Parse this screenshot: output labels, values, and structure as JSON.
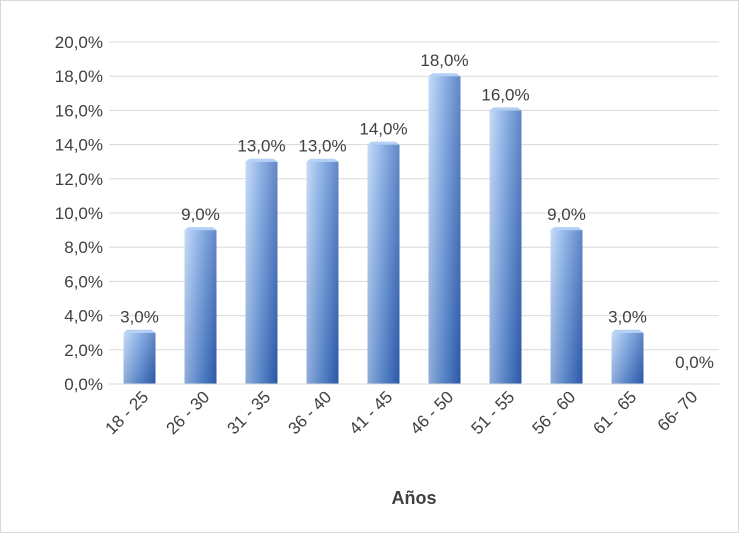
{
  "chart_data": {
    "type": "bar",
    "title": "",
    "xlabel": "Años",
    "ylabel": "",
    "categories": [
      "18 - 25",
      "26 - 30",
      "31 - 35",
      "36 - 40",
      "41 - 45",
      "46 - 50",
      "51 - 55",
      "56 - 60",
      "61 - 65",
      "66- 70"
    ],
    "values": [
      3.0,
      9.0,
      13.0,
      13.0,
      14.0,
      18.0,
      16.0,
      9.0,
      3.0,
      0.0
    ],
    "data_labels": [
      "3,0%",
      "9,0%",
      "13,0%",
      "13,0%",
      "14,0%",
      "18,0%",
      "16,0%",
      "9,0%",
      "3,0%",
      "0,0%"
    ],
    "ylim": [
      0,
      20
    ],
    "yticks": [
      0,
      2,
      4,
      6,
      8,
      10,
      12,
      14,
      16,
      18,
      20
    ],
    "ytick_labels": [
      "0,0%",
      "2,0%",
      "4,0%",
      "6,0%",
      "8,0%",
      "10,0%",
      "12,0%",
      "14,0%",
      "16,0%",
      "18,0%",
      "20,0%"
    ],
    "grid": true,
    "legend": "none",
    "colors": {
      "bar_light": "#b4d0f5",
      "bar_mid": "#6e9ee0",
      "bar_dark": "#2f5fb3",
      "grid": "#d9d9d9",
      "text": "#404040"
    }
  }
}
